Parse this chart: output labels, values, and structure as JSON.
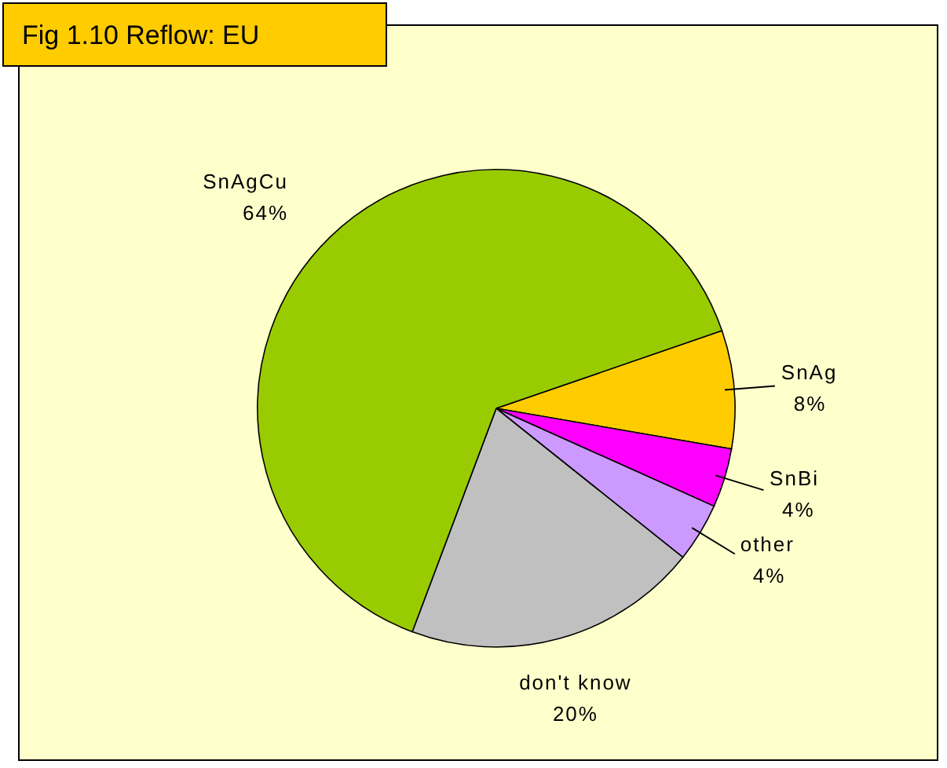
{
  "chart_data": {
    "type": "pie",
    "title": "Fig 1.10 Reflow: EU",
    "categories": [
      "SnAg",
      "SnBi",
      "other",
      "don't know",
      "SnAgCu"
    ],
    "values": [
      8,
      4,
      4,
      20,
      64
    ],
    "colors": [
      "#ffcc00",
      "#ff00ff",
      "#cc99ff",
      "#c0c0c0",
      "#99cc00"
    ],
    "value_labels": [
      "8%",
      "4%",
      "4%",
      "20%",
      "64%"
    ]
  }
}
